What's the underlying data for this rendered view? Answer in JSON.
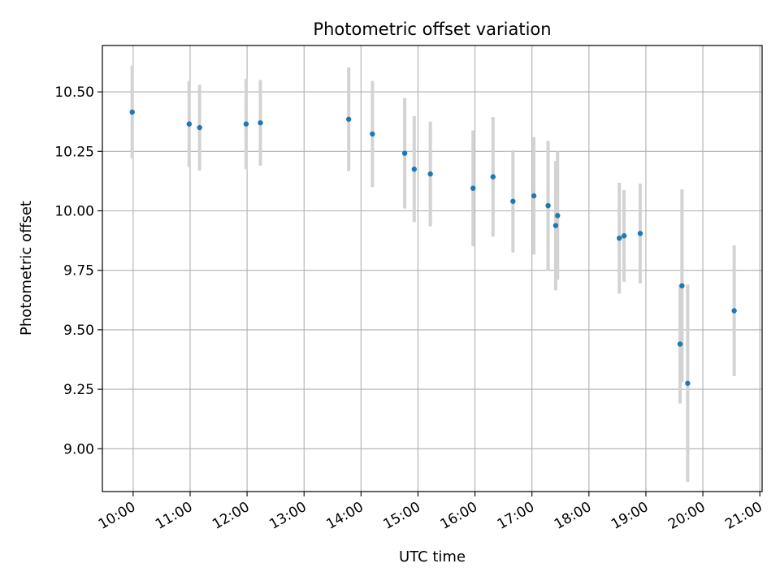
{
  "chart_data": {
    "type": "scatter",
    "title": "Photometric offset variation",
    "xlabel": "UTC time",
    "ylabel": "Photometric offset",
    "x_unit": "hour",
    "xlim": [
      9.46,
      21.04
    ],
    "ylim": [
      8.82,
      10.695
    ],
    "x_ticks": [
      10,
      11,
      12,
      13,
      14,
      15,
      16,
      17,
      18,
      19,
      20,
      21
    ],
    "x_tick_labels": [
      "10:00",
      "11:00",
      "12:00",
      "13:00",
      "14:00",
      "15:00",
      "16:00",
      "17:00",
      "18:00",
      "19:00",
      "20:00",
      "21:00"
    ],
    "y_ticks": [
      9.0,
      9.25,
      9.5,
      9.75,
      10.0,
      10.25,
      10.5
    ],
    "y_tick_labels": [
      "9.00",
      "9.25",
      "9.50",
      "9.75",
      "10.00",
      "10.25",
      "10.50"
    ],
    "grid": true,
    "colors": {
      "point": "#1f77b4",
      "errorbar": "#d3d3d3",
      "grid": "#b0b0b0"
    },
    "points": [
      {
        "x": "09:59",
        "y": 10.415,
        "err": 0.195
      },
      {
        "x": "10:59",
        "y": 10.365,
        "err": 0.18
      },
      {
        "x": "11:10",
        "y": 10.35,
        "err": 0.18
      },
      {
        "x": "11:59",
        "y": 10.365,
        "err": 0.19
      },
      {
        "x": "12:14",
        "y": 10.37,
        "err": 0.18
      },
      {
        "x": "13:47",
        "y": 10.385,
        "err": 0.218
      },
      {
        "x": "14:12",
        "y": 10.323,
        "err": 0.223
      },
      {
        "x": "14:46",
        "y": 10.242,
        "err": 0.232
      },
      {
        "x": "14:56",
        "y": 10.175,
        "err": 0.223
      },
      {
        "x": "15:13",
        "y": 10.155,
        "err": 0.22
      },
      {
        "x": "15:58",
        "y": 10.095,
        "err": 0.243
      },
      {
        "x": "16:19",
        "y": 10.143,
        "err": 0.251
      },
      {
        "x": "16:40",
        "y": 10.04,
        "err": 0.215
      },
      {
        "x": "17:02",
        "y": 10.063,
        "err": 0.247
      },
      {
        "x": "17:17",
        "y": 10.022,
        "err": 0.272
      },
      {
        "x": "17:25",
        "y": 9.938,
        "err": 0.272
      },
      {
        "x": "17:27",
        "y": 9.98,
        "err": 0.27
      },
      {
        "x": "18:32",
        "y": 9.885,
        "err": 0.233
      },
      {
        "x": "18:37",
        "y": 9.895,
        "err": 0.193
      },
      {
        "x": "18:54",
        "y": 9.905,
        "err": 0.21
      },
      {
        "x": "19:36",
        "y": 9.44,
        "err": 0.25
      },
      {
        "x": "19:38",
        "y": 9.685,
        "err": 0.405
      },
      {
        "x": "19:44",
        "y": 9.275,
        "err": 0.415
      },
      {
        "x": "20:33",
        "y": 9.58,
        "err": 0.275
      }
    ]
  }
}
